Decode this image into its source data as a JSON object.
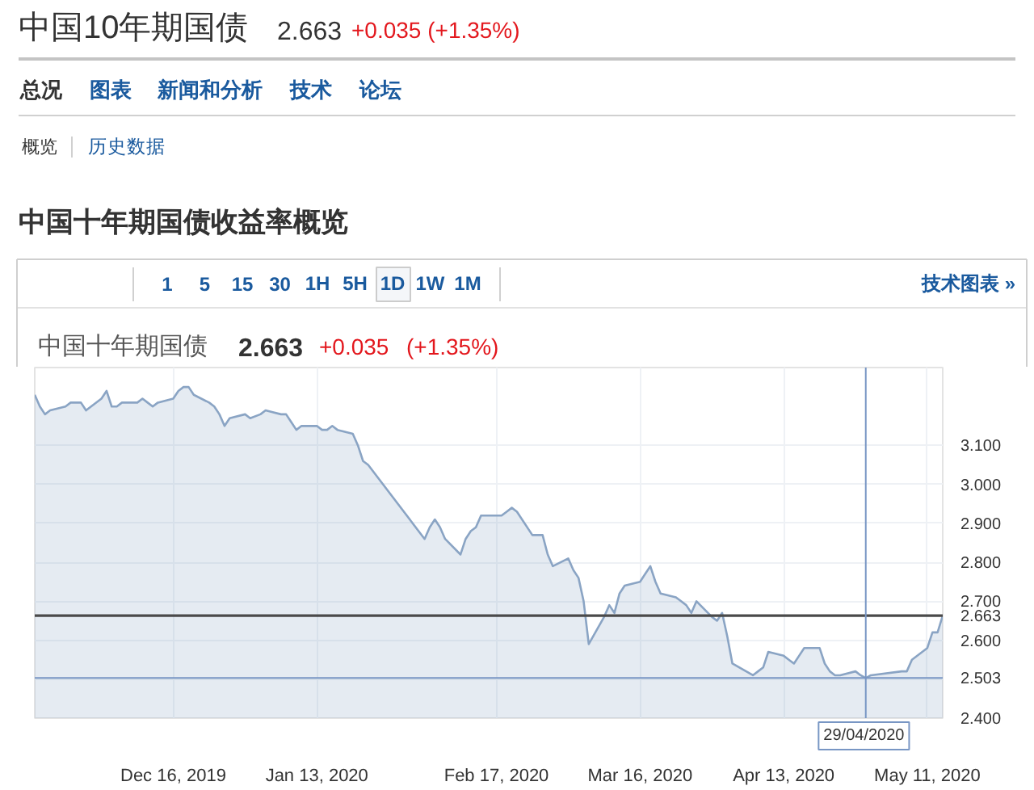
{
  "chart_data": {
    "type": "area",
    "title": "中国十年期国债收益率概览",
    "annotations": [
      "中国10年期国债",
      "2.663",
      "+0.035 (+1.35%)",
      "总况",
      "图表",
      "新闻和分析",
      "技术",
      "论坛",
      "概览",
      "历史数据",
      "1 5 15 30 1H 5H 1D 1W 1M",
      "技术图表 »",
      "中国十年期国债",
      "2.663",
      "+0.035",
      "(+1.35%)"
    ],
    "x": [
      "2019-11-19",
      "2019-11-20",
      "2019-11-21",
      "2019-11-22",
      "2019-11-25",
      "2019-11-26",
      "2019-11-27",
      "2019-11-28",
      "2019-11-29",
      "2019-12-02",
      "2019-12-03",
      "2019-12-04",
      "2019-12-05",
      "2019-12-06",
      "2019-12-09",
      "2019-12-10",
      "2019-12-11",
      "2019-12-12",
      "2019-12-13",
      "2019-12-16",
      "2019-12-17",
      "2019-12-18",
      "2019-12-19",
      "2019-12-20",
      "2019-12-23",
      "2019-12-24",
      "2019-12-25",
      "2019-12-26",
      "2019-12-27",
      "2019-12-30",
      "2019-12-31",
      "2020-01-02",
      "2020-01-03",
      "2020-01-06",
      "2020-01-07",
      "2020-01-08",
      "2020-01-09",
      "2020-01-10",
      "2020-01-13",
      "2020-01-14",
      "2020-01-15",
      "2020-01-16",
      "2020-01-17",
      "2020-01-20",
      "2020-01-21",
      "2020-01-22",
      "2020-01-23",
      "2020-02-03",
      "2020-02-04",
      "2020-02-05",
      "2020-02-06",
      "2020-02-07",
      "2020-02-10",
      "2020-02-11",
      "2020-02-12",
      "2020-02-13",
      "2020-02-14",
      "2020-02-17",
      "2020-02-18",
      "2020-02-19",
      "2020-02-20",
      "2020-02-21",
      "2020-02-24",
      "2020-02-25",
      "2020-02-26",
      "2020-02-27",
      "2020-02-28",
      "2020-03-02",
      "2020-03-03",
      "2020-03-04",
      "2020-03-05",
      "2020-03-06",
      "2020-03-09",
      "2020-03-10",
      "2020-03-11",
      "2020-03-12",
      "2020-03-13",
      "2020-03-16",
      "2020-03-17",
      "2020-03-18",
      "2020-03-19",
      "2020-03-20",
      "2020-03-23",
      "2020-03-24",
      "2020-03-25",
      "2020-03-26",
      "2020-03-27",
      "2020-03-30",
      "2020-03-31",
      "2020-04-01",
      "2020-04-02",
      "2020-04-03",
      "2020-04-07",
      "2020-04-08",
      "2020-04-09",
      "2020-04-10",
      "2020-04-13",
      "2020-04-14",
      "2020-04-15",
      "2020-04-16",
      "2020-04-17",
      "2020-04-20",
      "2020-04-21",
      "2020-04-22",
      "2020-04-23",
      "2020-04-24",
      "2020-04-27",
      "2020-04-28",
      "2020-04-29",
      "2020-04-30",
      "2020-05-06",
      "2020-05-07",
      "2020-05-08",
      "2020-05-11",
      "2020-05-12",
      "2020-05-13",
      "2020-05-14"
    ],
    "series": [
      {
        "color": "#8aa4c4",
        "values": [
          3.23,
          3.2,
          3.18,
          3.19,
          3.2,
          3.21,
          3.21,
          3.21,
          3.19,
          3.22,
          3.24,
          3.2,
          3.2,
          3.21,
          3.21,
          3.22,
          3.21,
          3.2,
          3.21,
          3.22,
          3.24,
          3.25,
          3.25,
          3.23,
          3.21,
          3.2,
          3.18,
          3.15,
          3.17,
          3.18,
          3.17,
          3.18,
          3.19,
          3.18,
          3.18,
          3.16,
          3.14,
          3.15,
          3.15,
          3.14,
          3.14,
          3.15,
          3.14,
          3.13,
          3.1,
          3.06,
          3.05,
          2.86,
          2.89,
          2.91,
          2.89,
          2.86,
          2.82,
          2.86,
          2.88,
          2.89,
          2.92,
          2.92,
          2.92,
          2.93,
          2.94,
          2.93,
          2.87,
          2.87,
          2.87,
          2.82,
          2.79,
          2.81,
          2.78,
          2.76,
          2.7,
          2.59,
          2.66,
          2.69,
          2.67,
          2.72,
          2.74,
          2.75,
          2.77,
          2.79,
          2.75,
          2.72,
          2.71,
          2.7,
          2.69,
          2.67,
          2.7,
          2.66,
          2.65,
          2.67,
          2.61,
          2.54,
          2.51,
          2.52,
          2.53,
          2.57,
          2.56,
          2.55,
          2.54,
          2.56,
          2.58,
          2.58,
          2.54,
          2.52,
          2.51,
          2.51,
          2.52,
          2.51,
          2.503,
          2.51,
          2.52,
          2.52,
          2.55,
          2.58,
          2.62,
          2.62,
          2.663
        ]
      }
    ],
    "xlim": [
      "2019-11-19",
      "2020-05-14"
    ],
    "xticks": [
      {
        "value": "2019-12-16",
        "label": "Dec 16, 2019"
      },
      {
        "value": "2020-01-13",
        "label": "Jan 13, 2020"
      },
      {
        "value": "2020-02-17",
        "label": "Feb 17, 2020"
      },
      {
        "value": "2020-03-16",
        "label": "Mar 16, 2020"
      },
      {
        "value": "2020-04-13",
        "label": "Apr 13, 2020"
      },
      {
        "value": "2020-05-11",
        "label": "May 11, 2020"
      }
    ],
    "ylim": [
      2.4,
      3.3
    ],
    "yticks": [
      {
        "value": 2.4,
        "label": "2.400"
      },
      {
        "value": 2.5,
        "label": null
      },
      {
        "value": 2.6,
        "label": "2.600"
      },
      {
        "value": 2.7,
        "label": "2.700"
      },
      {
        "value": 2.8,
        "label": "2.800"
      },
      {
        "value": 2.9,
        "label": "2.900"
      },
      {
        "value": 3.0,
        "label": "3.000"
      },
      {
        "value": 3.1,
        "label": "3.100"
      }
    ],
    "grid": true,
    "ref_lines": [
      {
        "axis": "y",
        "value": 2.663,
        "label": "2.663",
        "color": "#4a4a4a"
      },
      {
        "axis": "y",
        "value": 2.503,
        "label": "2.503",
        "color": "#7896c4"
      },
      {
        "axis": "x",
        "value": "2020-04-29",
        "label": "29/04/2020",
        "color": "#7896c4"
      }
    ]
  }
}
